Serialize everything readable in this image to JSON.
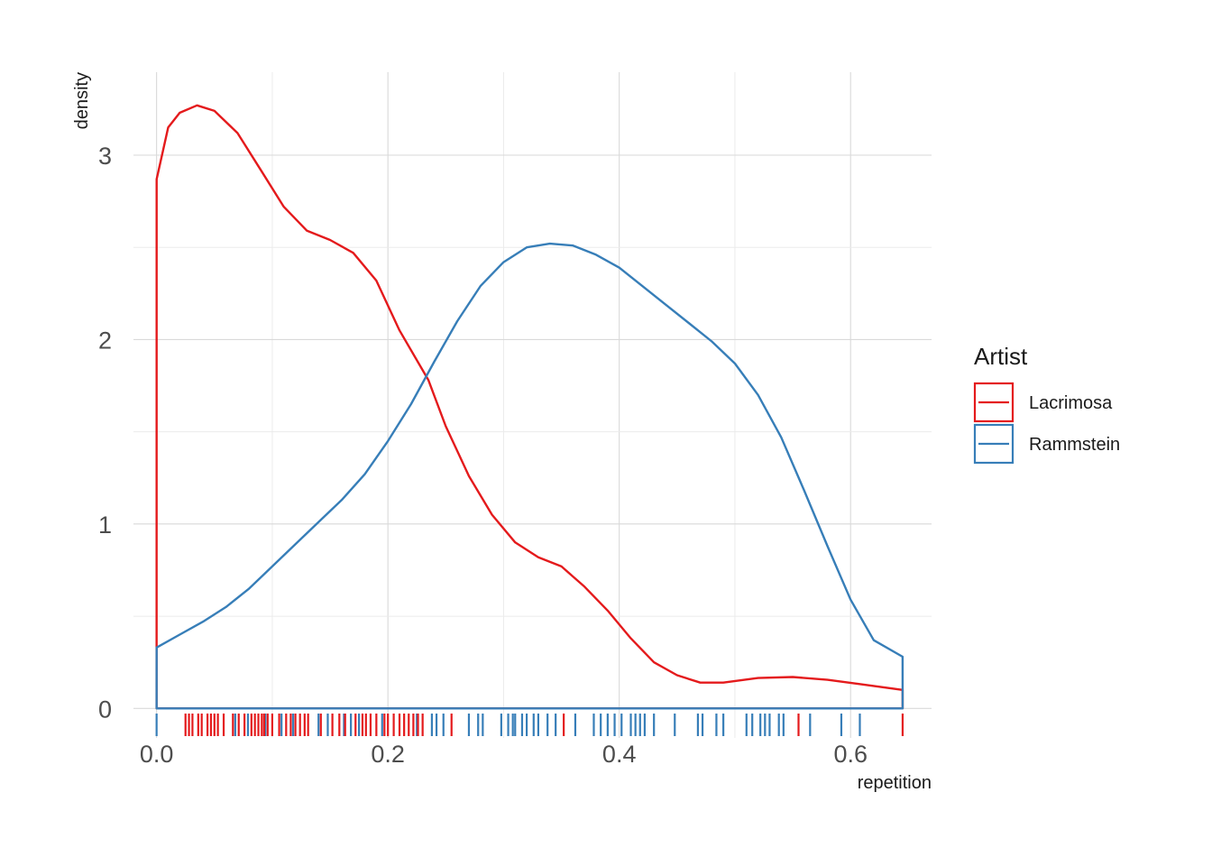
{
  "chart_data": {
    "type": "density",
    "title": "",
    "xlabel": "repetition",
    "ylabel": "density",
    "xlim": [
      -0.02,
      0.67
    ],
    "ylim": [
      -0.16,
      3.45
    ],
    "x_ticks": [
      0.0,
      0.2,
      0.4,
      0.6
    ],
    "x_tick_labels": [
      "0.0",
      "0.2",
      "0.4",
      "0.6"
    ],
    "y_ticks": [
      0,
      1,
      2,
      3
    ],
    "y_tick_labels": [
      "0",
      "1",
      "2",
      "3"
    ],
    "grid": true,
    "legend": {
      "title": "Artist",
      "position": "right"
    },
    "series": [
      {
        "name": "Lacrimosa",
        "color": "#e41a1c",
        "density": [
          [
            0.0,
            2.87
          ],
          [
            0.01,
            3.15
          ],
          [
            0.02,
            3.23
          ],
          [
            0.035,
            3.27
          ],
          [
            0.05,
            3.24
          ],
          [
            0.07,
            3.12
          ],
          [
            0.09,
            2.92
          ],
          [
            0.11,
            2.72
          ],
          [
            0.13,
            2.59
          ],
          [
            0.15,
            2.54
          ],
          [
            0.17,
            2.47
          ],
          [
            0.19,
            2.32
          ],
          [
            0.21,
            2.05
          ],
          [
            0.235,
            1.78
          ],
          [
            0.25,
            1.53
          ],
          [
            0.27,
            1.26
          ],
          [
            0.29,
            1.05
          ],
          [
            0.31,
            0.9
          ],
          [
            0.33,
            0.82
          ],
          [
            0.35,
            0.77
          ],
          [
            0.37,
            0.66
          ],
          [
            0.39,
            0.53
          ],
          [
            0.41,
            0.38
          ],
          [
            0.43,
            0.25
          ],
          [
            0.45,
            0.18
          ],
          [
            0.47,
            0.14
          ],
          [
            0.49,
            0.14
          ],
          [
            0.52,
            0.165
          ],
          [
            0.55,
            0.17
          ],
          [
            0.58,
            0.155
          ],
          [
            0.61,
            0.13
          ],
          [
            0.645,
            0.1
          ]
        ],
        "rug": [
          0.025,
          0.028,
          0.031,
          0.036,
          0.039,
          0.044,
          0.047,
          0.05,
          0.053,
          0.058,
          0.066,
          0.071,
          0.076,
          0.082,
          0.085,
          0.088,
          0.091,
          0.093,
          0.096,
          0.1,
          0.106,
          0.112,
          0.116,
          0.12,
          0.124,
          0.128,
          0.131,
          0.142,
          0.152,
          0.158,
          0.163,
          0.172,
          0.178,
          0.181,
          0.185,
          0.19,
          0.197,
          0.2,
          0.205,
          0.21,
          0.214,
          0.218,
          0.222,
          0.226,
          0.23,
          0.255,
          0.352,
          0.555,
          0.645
        ]
      },
      {
        "name": "Rammstein",
        "color": "#377eb8",
        "density": [
          [
            0.0,
            0.33
          ],
          [
            0.02,
            0.4
          ],
          [
            0.04,
            0.47
          ],
          [
            0.06,
            0.55
          ],
          [
            0.08,
            0.65
          ],
          [
            0.1,
            0.77
          ],
          [
            0.12,
            0.89
          ],
          [
            0.14,
            1.01
          ],
          [
            0.16,
            1.13
          ],
          [
            0.18,
            1.27
          ],
          [
            0.2,
            1.45
          ],
          [
            0.22,
            1.65
          ],
          [
            0.24,
            1.88
          ],
          [
            0.26,
            2.1
          ],
          [
            0.28,
            2.29
          ],
          [
            0.3,
            2.42
          ],
          [
            0.32,
            2.5
          ],
          [
            0.34,
            2.52
          ],
          [
            0.36,
            2.51
          ],
          [
            0.38,
            2.46
          ],
          [
            0.4,
            2.39
          ],
          [
            0.42,
            2.29
          ],
          [
            0.44,
            2.19
          ],
          [
            0.46,
            2.09
          ],
          [
            0.48,
            1.99
          ],
          [
            0.5,
            1.87
          ],
          [
            0.52,
            1.7
          ],
          [
            0.54,
            1.47
          ],
          [
            0.56,
            1.18
          ],
          [
            0.58,
            0.88
          ],
          [
            0.6,
            0.59
          ],
          [
            0.62,
            0.37
          ],
          [
            0.645,
            0.28
          ]
        ],
        "rug": [
          0.0,
          0.068,
          0.079,
          0.094,
          0.108,
          0.118,
          0.14,
          0.148,
          0.162,
          0.168,
          0.175,
          0.195,
          0.225,
          0.238,
          0.242,
          0.248,
          0.27,
          0.278,
          0.282,
          0.298,
          0.304,
          0.308,
          0.31,
          0.316,
          0.32,
          0.326,
          0.33,
          0.338,
          0.345,
          0.362,
          0.378,
          0.384,
          0.39,
          0.396,
          0.402,
          0.41,
          0.414,
          0.418,
          0.422,
          0.43,
          0.448,
          0.468,
          0.472,
          0.484,
          0.49,
          0.51,
          0.515,
          0.522,
          0.526,
          0.53,
          0.538,
          0.542,
          0.565,
          0.592,
          0.608
        ]
      }
    ]
  }
}
